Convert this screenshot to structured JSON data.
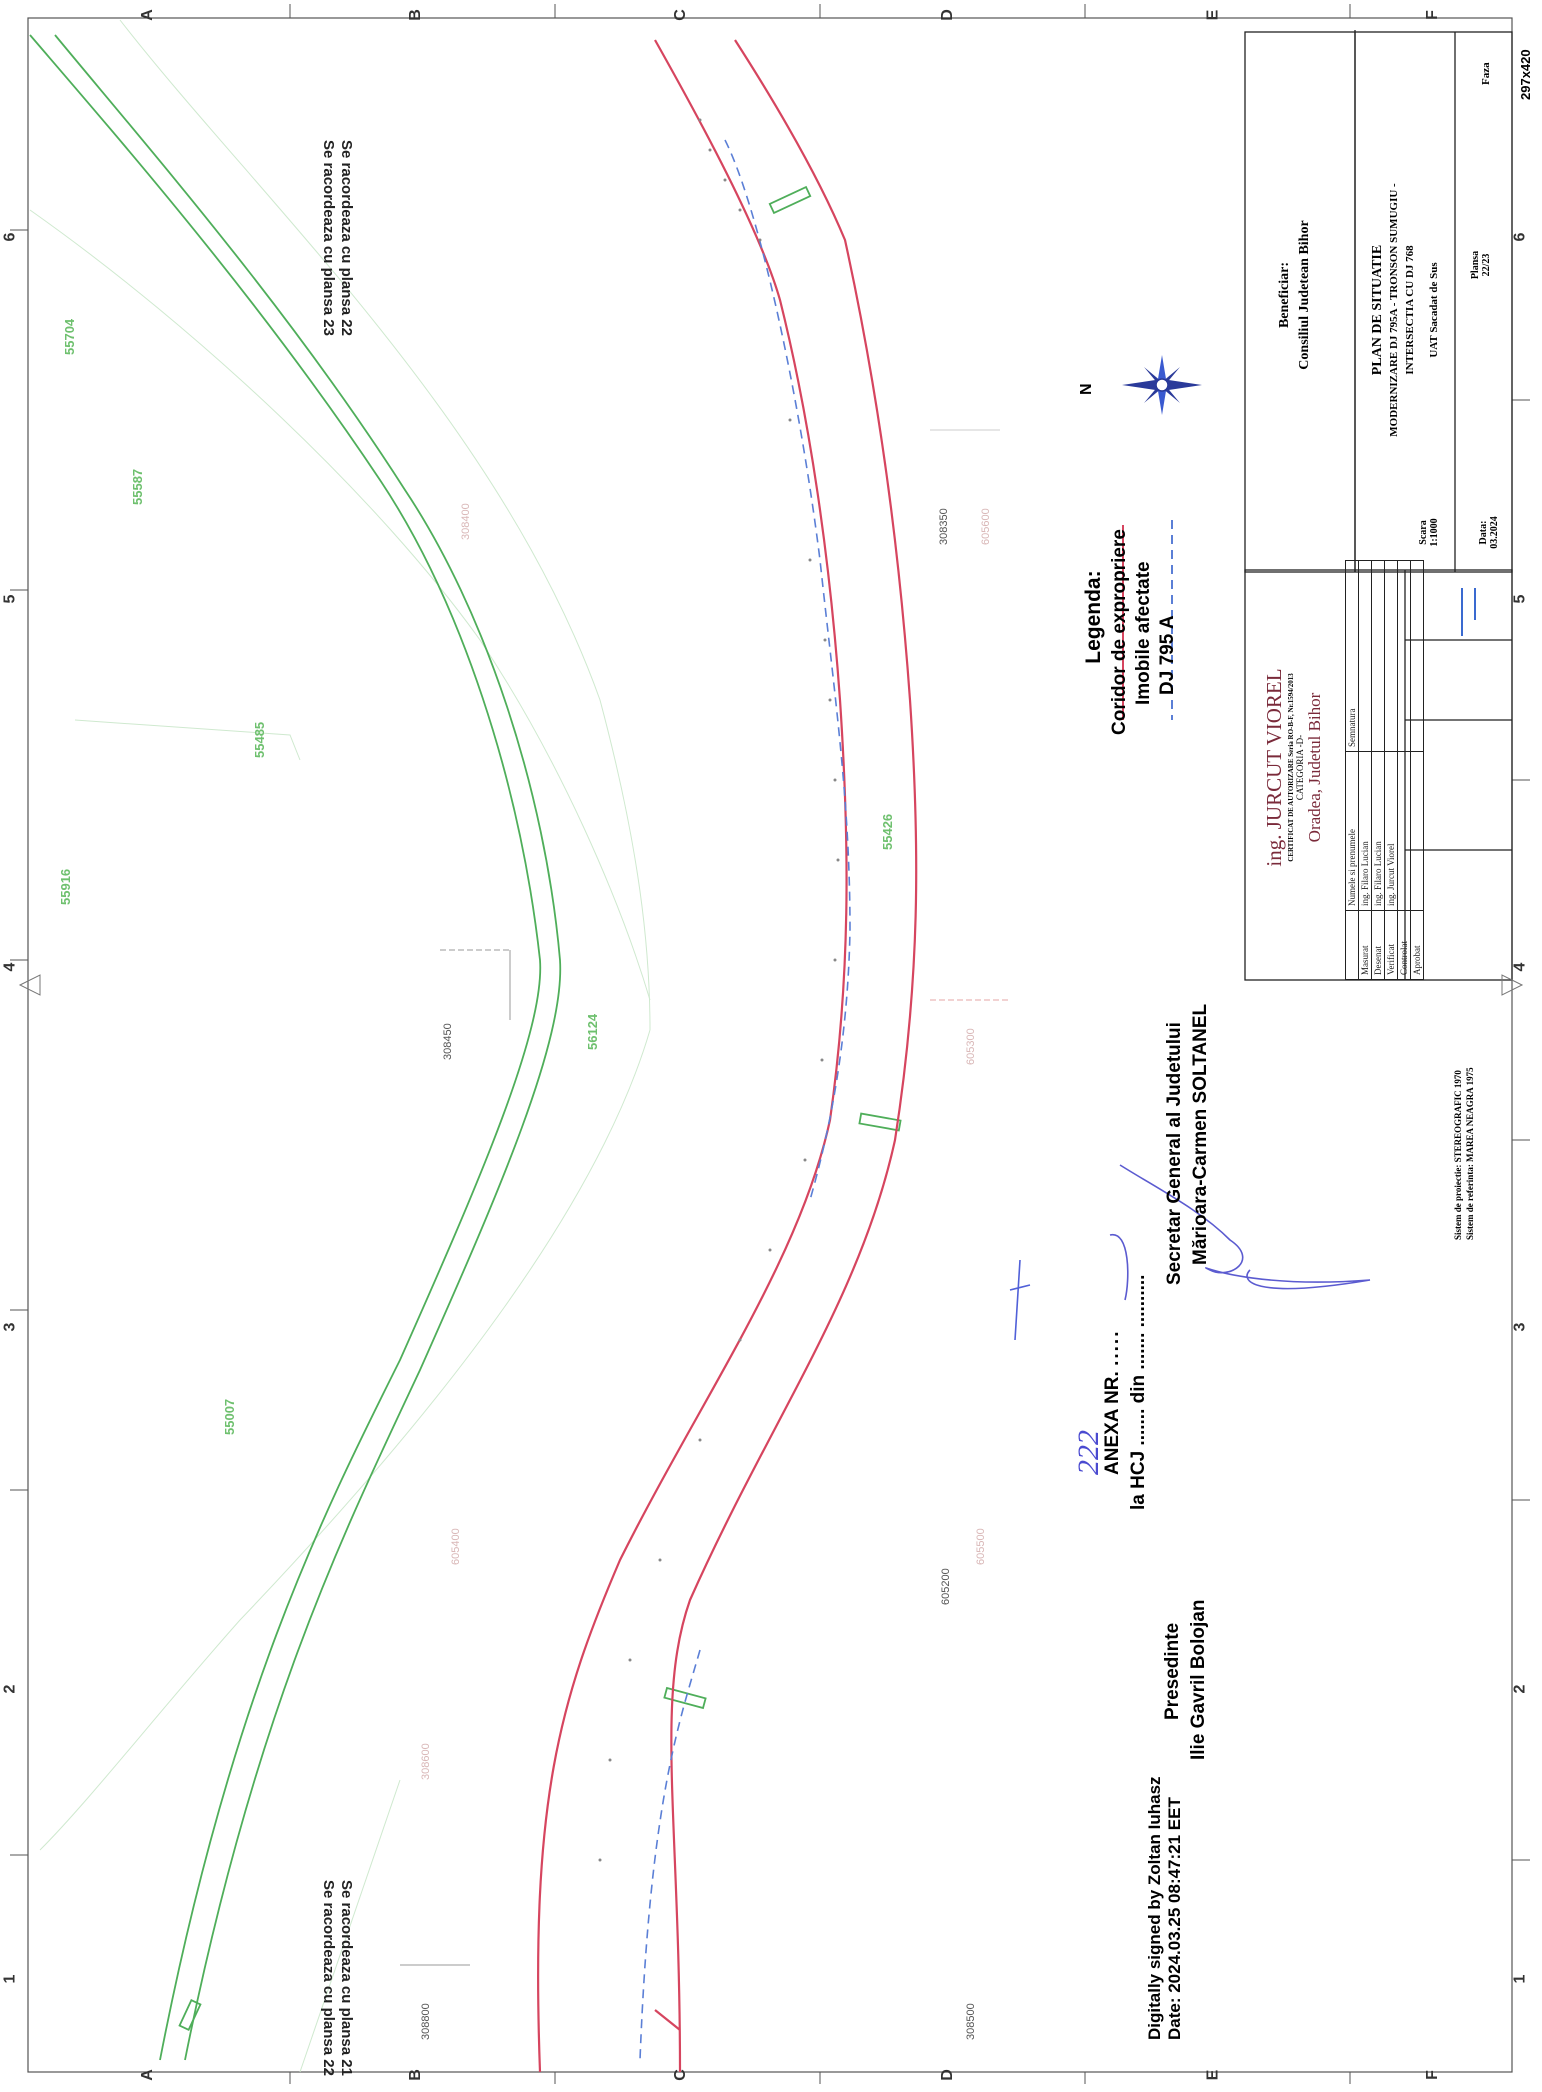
{
  "grid": {
    "columns": [
      "A",
      "B",
      "C",
      "D",
      "E",
      "F"
    ],
    "rows": [
      "1",
      "2",
      "3",
      "4",
      "5",
      "6"
    ]
  },
  "notes": {
    "connect_top": [
      "Se racordeaza cu plansa 22",
      "Se racordeaza cu plansa 23"
    ],
    "connect_bottom": [
      "Se racordeaza cu plansa 21",
      "Se racordeaza cu plansa 22"
    ]
  },
  "parcels": [
    "55704",
    "55587",
    "55485",
    "55916",
    "56124",
    "55007",
    "55426"
  ],
  "coordinates": [
    "308450",
    "308800",
    "308350",
    "605200",
    "605300",
    "605500",
    "605400",
    "308400",
    "308500",
    "605600",
    "308600"
  ],
  "legend": {
    "title": "Legenda:",
    "items": [
      {
        "label": "Coridor de expropriere",
        "color": "#d6455f",
        "style": "solid"
      },
      {
        "label": "Imobile afectate",
        "color": "#6ec06e",
        "style": "solid"
      },
      {
        "label": "DJ 795 A",
        "color": "#5b7fd6",
        "style": "dashed"
      }
    ]
  },
  "north": "N",
  "annex": {
    "line1": "ANEXA NR.",
    "number": "222",
    "line2": "la HCJ ....... din ....... ..........",
    "president_title": "Presedinte",
    "president_name": "Ilie Gavril Bolojan",
    "secretary_title": "Secretar General al Judetului",
    "secretary_name": "Mărioara-Carmen SOLTANEL"
  },
  "digital_signature": {
    "line1": "Digitally signed by Zoltan Iuhasz",
    "line2": "Date: 2024.03.25 08:47:21 EET"
  },
  "projection": {
    "line1": "Sistem de proiectie: STEREOGRAFIC 1970",
    "line2": "Sistem de referinta: MAREA NEAGRA 1975"
  },
  "title_block": {
    "engineer": "ing. JURCUT VIOREL",
    "certificate": "CERTIFICAT DE AUTORIZARE Seria RO-B-F, Nr.1594/2013",
    "category": "CATEGORIA -D-",
    "city": "Oradea, Judetul Bihor",
    "header": [
      "",
      "Numele si prenumele",
      "Semnatura"
    ],
    "rows": [
      {
        "role": "Masurat",
        "name": "ing. Filaro Lucian"
      },
      {
        "role": "Desenat",
        "name": "ing. Filaro Lucian"
      },
      {
        "role": "Verificat",
        "name": "ing. Jurcut Viorel"
      },
      {
        "role": "Controlat",
        "name": ""
      },
      {
        "role": "Aprobat",
        "name": ""
      }
    ],
    "scale_label": "Scara",
    "scale": "1:1000",
    "date_label": "Data:",
    "date": "03.2024",
    "beneficiary_label": "Beneficiar:",
    "beneficiary": "Consiliul Judetean Bihor",
    "plan_title": "PLAN DE SITUATIE",
    "project": "MODERNIZARE DJ 795A - TRONSON SUMUGIU - INTERSECTIA CU DJ 768",
    "uat": "UAT Sacadat de Sus",
    "faza_label": "Faza",
    "sheet_label": "Plansa",
    "sheet": "22/23",
    "format": "297x420"
  }
}
